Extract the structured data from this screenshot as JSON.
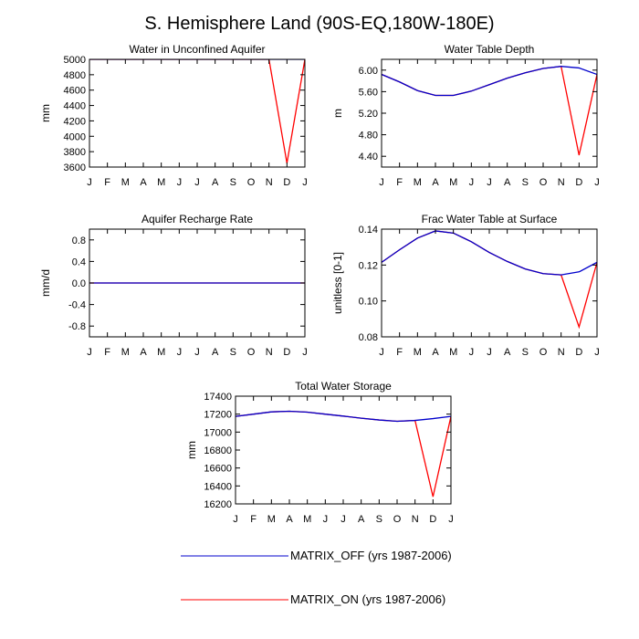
{
  "title": "S. Hemisphere Land (90S-EQ,180W-180E)",
  "colors": {
    "matrix_off": "#0000cc",
    "matrix_on": "#ff0000",
    "axis": "#000000"
  },
  "legend": {
    "entries": [
      {
        "label": "MATRIX_OFF (yrs 1987-2006)",
        "color": "#0000cc"
      },
      {
        "label": "MATRIX_ON (yrs 1987-2006)",
        "color": "#ff0000"
      }
    ]
  },
  "chart_data": [
    {
      "type": "line",
      "title": "Water in Unconfined Aquifer",
      "ylabel": "mm",
      "ylim": [
        3600,
        5000
      ],
      "yticks": [
        3600,
        3800,
        4000,
        4200,
        4400,
        4600,
        4800,
        5000
      ],
      "ytick_labels": [
        "3600",
        "3800",
        "4000",
        "4200",
        "4400",
        "4600",
        "4800",
        "5000"
      ],
      "categories": [
        "J",
        "F",
        "M",
        "A",
        "M",
        "J",
        "J",
        "A",
        "S",
        "O",
        "N",
        "D",
        "J"
      ],
      "series": [
        {
          "name": "MATRIX_OFF",
          "values": [
            5000,
            5000,
            5000,
            5000,
            5000,
            5000,
            5000,
            5000,
            5000,
            5000,
            5000,
            5000,
            5000
          ]
        },
        {
          "name": "MATRIX_ON",
          "values": [
            5000,
            5000,
            5000,
            5000,
            5000,
            5000,
            5000,
            5000,
            5000,
            5000,
            5000,
            3650,
            5000
          ]
        }
      ]
    },
    {
      "type": "line",
      "title": "Water Table Depth",
      "ylabel": "m",
      "ylim": [
        4.2,
        6.2
      ],
      "yticks": [
        4.4,
        4.8,
        5.2,
        5.6,
        6.0
      ],
      "ytick_labels": [
        "4.40",
        "4.80",
        "5.20",
        "5.60",
        "6.00"
      ],
      "categories": [
        "J",
        "F",
        "M",
        "A",
        "M",
        "J",
        "J",
        "A",
        "S",
        "O",
        "N",
        "D",
        "J"
      ],
      "series": [
        {
          "name": "MATRIX_OFF",
          "values": [
            5.92,
            5.78,
            5.62,
            5.53,
            5.53,
            5.61,
            5.73,
            5.85,
            5.95,
            6.03,
            6.07,
            6.04,
            5.92
          ]
        },
        {
          "name": "MATRIX_ON",
          "values": [
            5.92,
            5.78,
            5.62,
            5.53,
            5.53,
            5.61,
            5.73,
            5.85,
            5.95,
            6.03,
            6.07,
            4.42,
            5.92
          ]
        }
      ]
    },
    {
      "type": "line",
      "title": "Aquifer Recharge Rate",
      "ylabel": "mm/d",
      "ylim": [
        -1.0,
        1.0
      ],
      "yticks": [
        -0.8,
        -0.4,
        0.0,
        0.4,
        0.8
      ],
      "ytick_labels": [
        "-0.8",
        "-0.4",
        "0.0",
        "0.4",
        "0.8"
      ],
      "categories": [
        "J",
        "F",
        "M",
        "A",
        "M",
        "J",
        "J",
        "A",
        "S",
        "O",
        "N",
        "D",
        "J"
      ],
      "series": [
        {
          "name": "MATRIX_OFF",
          "values": [
            0,
            0,
            0,
            0,
            0,
            0,
            0,
            0,
            0,
            0,
            0,
            0,
            0
          ]
        },
        {
          "name": "MATRIX_ON",
          "values": [
            0,
            0,
            0,
            0,
            0,
            0,
            0,
            0,
            0,
            0,
            0,
            0,
            0
          ]
        }
      ]
    },
    {
      "type": "line",
      "title": "Frac Water Table at Surface",
      "ylabel": "unitless [0-1]",
      "ylim": [
        0.08,
        0.14
      ],
      "yticks": [
        0.08,
        0.1,
        0.12,
        0.14
      ],
      "ytick_labels": [
        "0.08",
        "0.10",
        "0.12",
        "0.14"
      ],
      "categories": [
        "J",
        "F",
        "M",
        "A",
        "M",
        "J",
        "J",
        "A",
        "S",
        "O",
        "N",
        "D",
        "J"
      ],
      "series": [
        {
          "name": "MATRIX_OFF",
          "values": [
            0.1215,
            0.1285,
            0.135,
            0.139,
            0.1378,
            0.133,
            0.127,
            0.122,
            0.1178,
            0.1152,
            0.1145,
            0.1162,
            0.1215
          ]
        },
        {
          "name": "MATRIX_ON",
          "values": [
            0.1215,
            0.1285,
            0.135,
            0.139,
            0.1378,
            0.133,
            0.127,
            0.122,
            0.1178,
            0.1152,
            0.1145,
            0.0855,
            0.1215
          ]
        }
      ]
    },
    {
      "type": "line",
      "title": "Total Water Storage",
      "ylabel": "mm",
      "ylim": [
        16200,
        17400
      ],
      "yticks": [
        16200,
        16400,
        16600,
        16800,
        17000,
        17200,
        17400
      ],
      "ytick_labels": [
        "16200",
        "16400",
        "16600",
        "16800",
        "17000",
        "17200",
        "17400"
      ],
      "categories": [
        "J",
        "F",
        "M",
        "A",
        "M",
        "J",
        "J",
        "A",
        "S",
        "O",
        "N",
        "D",
        "J"
      ],
      "series": [
        {
          "name": "MATRIX_OFF",
          "values": [
            17175,
            17200,
            17225,
            17232,
            17222,
            17200,
            17178,
            17155,
            17135,
            17120,
            17130,
            17150,
            17175
          ]
        },
        {
          "name": "MATRIX_ON",
          "values": [
            17175,
            17200,
            17225,
            17232,
            17222,
            17200,
            17178,
            17155,
            17135,
            17120,
            17130,
            16280,
            17175
          ]
        }
      ]
    }
  ]
}
